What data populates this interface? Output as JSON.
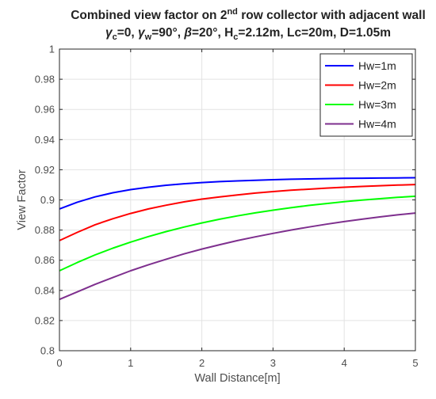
{
  "chart_data": {
    "type": "line",
    "title_line1": {
      "before_sup": "Combined view factor on 2",
      "sup": "nd",
      "after_sup": " row collector with adjacent wall"
    },
    "title_line2": {
      "gamma": "γ",
      "gamma_c_sub": "c",
      "gamma_c_val": "=0, ",
      "gamma_w_sub": "w",
      "gamma_w_val": "=90°, ",
      "beta": "β",
      "beta_val": "=20°, H",
      "hc_sub": "c",
      "rest": "=2.12m, Lc=20m, D=1.05m"
    },
    "xlabel": "Wall Distance[m]",
    "ylabel": "View Factor",
    "xlim": [
      0,
      5
    ],
    "ylim": [
      0.8,
      1.0
    ],
    "xticks": [
      0,
      1,
      2,
      3,
      4,
      5
    ],
    "yticks": [
      0.8,
      0.82,
      0.84,
      0.86,
      0.88,
      0.9,
      0.92,
      0.94,
      0.96,
      0.98,
      1
    ],
    "grid": true,
    "legend_position": "top-right",
    "x": [
      0,
      0.25,
      0.5,
      0.75,
      1,
      1.25,
      1.5,
      1.75,
      2,
      2.25,
      2.5,
      2.75,
      3,
      3.25,
      3.5,
      3.75,
      4,
      4.25,
      4.5,
      4.75,
      5
    ],
    "series": [
      {
        "name": "Hw=1m",
        "color": "#0000ff",
        "values": [
          0.894,
          0.8985,
          0.902,
          0.9047,
          0.9068,
          0.9084,
          0.9097,
          0.9107,
          0.9115,
          0.9121,
          0.9126,
          0.913,
          0.9134,
          0.9137,
          0.9139,
          0.9141,
          0.9143,
          0.9144,
          0.9145,
          0.9146,
          0.9147
        ]
      },
      {
        "name": "Hw=2m",
        "color": "#ff0000",
        "values": [
          0.873,
          0.8785,
          0.8835,
          0.8875,
          0.891,
          0.894,
          0.8965,
          0.8987,
          0.9005,
          0.902,
          0.9033,
          0.9045,
          0.9055,
          0.9064,
          0.9071,
          0.9078,
          0.9084,
          0.9089,
          0.9094,
          0.9098,
          0.9102
        ]
      },
      {
        "name": "Hw=3m",
        "color": "#00ff00",
        "values": [
          0.853,
          0.8585,
          0.8635,
          0.868,
          0.872,
          0.8757,
          0.879,
          0.882,
          0.8847,
          0.8872,
          0.8894,
          0.8914,
          0.8932,
          0.8948,
          0.8963,
          0.8976,
          0.8988,
          0.8999,
          0.9008,
          0.9017,
          0.9024
        ]
      },
      {
        "name": "Hw=4m",
        "color": "#7e2f8e",
        "values": [
          0.834,
          0.839,
          0.844,
          0.8485,
          0.853,
          0.857,
          0.8607,
          0.8642,
          0.8674,
          0.8703,
          0.873,
          0.8755,
          0.8778,
          0.88,
          0.882,
          0.8839,
          0.8856,
          0.8872,
          0.8887,
          0.8901,
          0.8913
        ]
      }
    ]
  }
}
